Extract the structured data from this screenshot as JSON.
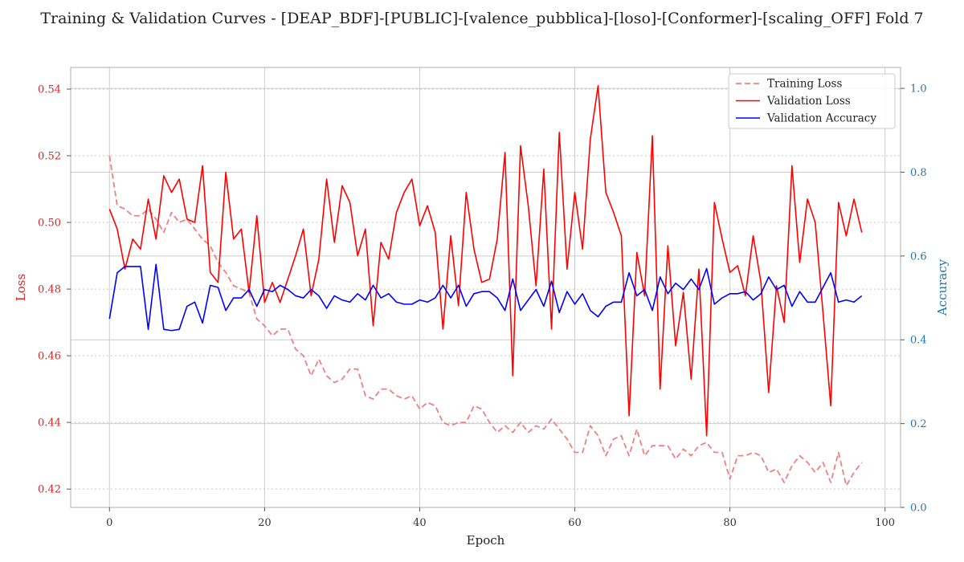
{
  "chart_data": {
    "type": "line",
    "title": "Training & Validation Curves - [DEAP_BDF]-[PUBLIC]-[valence_pubblica]-[loso]-[Conformer]-[scaling_OFF] Fold 7",
    "xlabel": "Epoch",
    "ylabel_left": "Loss",
    "ylabel_right": "Accuracy",
    "xlim": [
      -5,
      102
    ],
    "ylim_left": [
      0.4145,
      0.5465
    ],
    "ylim_right": [
      0.0,
      1.05
    ],
    "x_ticks": [
      0,
      20,
      40,
      60,
      80,
      100
    ],
    "y_ticks_left": [
      0.42,
      0.44,
      0.46,
      0.48,
      0.5,
      0.52,
      0.54
    ],
    "y_ticks_right": [
      0.0,
      0.2,
      0.4,
      0.6,
      0.8,
      1.0
    ],
    "grid": true,
    "legend_position": "top-right",
    "colors": {
      "training_loss": "#f08080",
      "validation_loss": "#ff0000",
      "validation_accuracy": "#0000ff",
      "left_axis": "#d62728",
      "right_axis": "#1f77b4"
    },
    "series": [
      {
        "name": "Training Loss",
        "axis": "left",
        "style": "dashed",
        "values": [
          0.52,
          0.505,
          0.504,
          0.502,
          0.502,
          0.504,
          0.501,
          0.497,
          0.503,
          0.5,
          0.501,
          0.498,
          0.495,
          0.493,
          0.488,
          0.485,
          0.481,
          0.48,
          0.479,
          0.471,
          0.469,
          0.466,
          0.468,
          0.468,
          0.462,
          0.46,
          0.454,
          0.459,
          0.454,
          0.452,
          0.453,
          0.456,
          0.456,
          0.448,
          0.447,
          0.45,
          0.45,
          0.448,
          0.447,
          0.448,
          0.444,
          0.446,
          0.445,
          0.44,
          0.439,
          0.44,
          0.44,
          0.445,
          0.444,
          0.44,
          0.437,
          0.439,
          0.437,
          0.44,
          0.437,
          0.439,
          0.438,
          0.441,
          0.438,
          0.435,
          0.431,
          0.431,
          0.439,
          0.436,
          0.43,
          0.435,
          0.436,
          0.43,
          0.438,
          0.43,
          0.433,
          0.433,
          0.433,
          0.429,
          0.432,
          0.43,
          0.433,
          0.434,
          0.431,
          0.431,
          0.423,
          0.43,
          0.43,
          0.431,
          0.43,
          0.425,
          0.426,
          0.422,
          0.427,
          0.43,
          0.428,
          0.425,
          0.428,
          0.422,
          0.431,
          0.421,
          0.425,
          0.428
        ]
      },
      {
        "name": "Validation Loss",
        "axis": "left",
        "style": "solid",
        "values": [
          0.504,
          0.498,
          0.486,
          0.495,
          0.492,
          0.507,
          0.495,
          0.514,
          0.509,
          0.513,
          0.501,
          0.5,
          0.517,
          0.485,
          0.482,
          0.515,
          0.495,
          0.498,
          0.479,
          0.502,
          0.476,
          0.482,
          0.476,
          0.483,
          0.49,
          0.498,
          0.478,
          0.489,
          0.513,
          0.494,
          0.511,
          0.506,
          0.49,
          0.498,
          0.469,
          0.494,
          0.489,
          0.503,
          0.509,
          0.513,
          0.499,
          0.505,
          0.497,
          0.468,
          0.496,
          0.475,
          0.509,
          0.492,
          0.482,
          0.483,
          0.495,
          0.521,
          0.454,
          0.523,
          0.505,
          0.481,
          0.516,
          0.468,
          0.527,
          0.486,
          0.509,
          0.492,
          0.525,
          0.541,
          0.509,
          0.503,
          0.496,
          0.442,
          0.491,
          0.478,
          0.526,
          0.45,
          0.493,
          0.463,
          0.479,
          0.453,
          0.486,
          0.436,
          0.506,
          0.495,
          0.485,
          0.487,
          0.478,
          0.496,
          0.482,
          0.449,
          0.481,
          0.47,
          0.517,
          0.488,
          0.507,
          0.5,
          0.473,
          0.445,
          0.506,
          0.496,
          0.507,
          0.497
        ]
      },
      {
        "name": "Validation Accuracy",
        "axis": "right",
        "style": "solid",
        "values": [
          0.45,
          0.56,
          0.575,
          0.575,
          0.575,
          0.425,
          0.58,
          0.425,
          0.422,
          0.425,
          0.48,
          0.49,
          0.44,
          0.53,
          0.525,
          0.47,
          0.5,
          0.5,
          0.52,
          0.48,
          0.52,
          0.515,
          0.53,
          0.52,
          0.505,
          0.5,
          0.52,
          0.505,
          0.475,
          0.505,
          0.495,
          0.49,
          0.51,
          0.495,
          0.53,
          0.5,
          0.51,
          0.49,
          0.485,
          0.485,
          0.495,
          0.49,
          0.5,
          0.53,
          0.5,
          0.53,
          0.48,
          0.51,
          0.515,
          0.515,
          0.5,
          0.47,
          0.545,
          0.47,
          0.495,
          0.52,
          0.48,
          0.54,
          0.465,
          0.515,
          0.485,
          0.51,
          0.47,
          0.455,
          0.48,
          0.49,
          0.49,
          0.56,
          0.505,
          0.52,
          0.47,
          0.55,
          0.51,
          0.535,
          0.52,
          0.545,
          0.52,
          0.57,
          0.485,
          0.5,
          0.51,
          0.51,
          0.515,
          0.495,
          0.51,
          0.55,
          0.52,
          0.53,
          0.48,
          0.515,
          0.49,
          0.49,
          0.525,
          0.56,
          0.49,
          0.495,
          0.49,
          0.505
        ]
      }
    ]
  }
}
